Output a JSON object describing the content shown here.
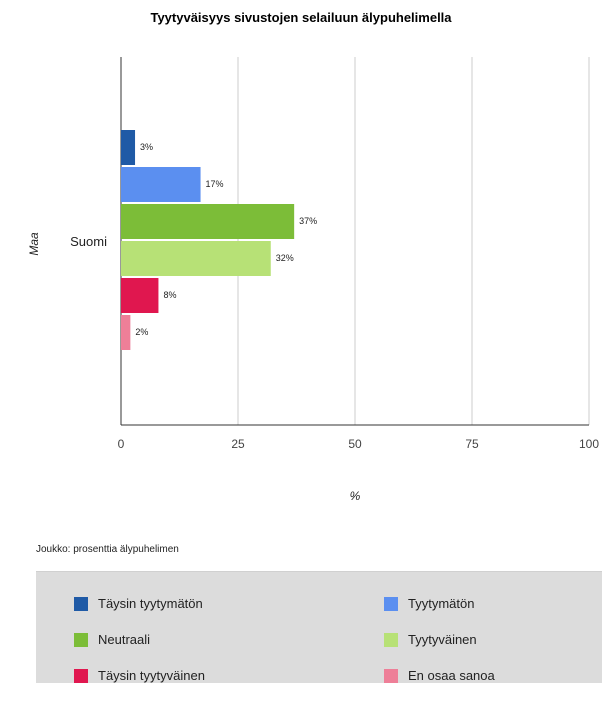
{
  "chart_data": {
    "type": "bar",
    "orientation": "horizontal",
    "title": "Tyytyväisyys sivustojen selailuun älypuhelimella",
    "xlabel": "%",
    "ylabel": "Maa",
    "categories": [
      "Suomi"
    ],
    "xlim": [
      0,
      100
    ],
    "xticks": [
      0,
      25,
      50,
      75,
      100
    ],
    "grid": true,
    "legend_position": "bottom",
    "series": [
      {
        "name": "Täysin tyytymätön",
        "values": [
          3
        ],
        "label": "3%",
        "color": "#1f5aa6"
      },
      {
        "name": "Tyytymätön",
        "values": [
          17
        ],
        "label": "17%",
        "color": "#5b8ff0"
      },
      {
        "name": "Neutraali",
        "values": [
          37
        ],
        "label": "37%",
        "color": "#7cbd38"
      },
      {
        "name": "Tyytyväinen",
        "values": [
          32
        ],
        "label": "32%",
        "color": "#b7e176"
      },
      {
        "name": "Täysin tyytyväinen",
        "values": [
          8
        ],
        "label": "8%",
        "color": "#e0174f"
      },
      {
        "name": "En osaa sanoa",
        "values": [
          2
        ],
        "label": "2%",
        "color": "#ee7f98"
      }
    ],
    "note": "Joukko: prosenttia älypuhelimen"
  }
}
